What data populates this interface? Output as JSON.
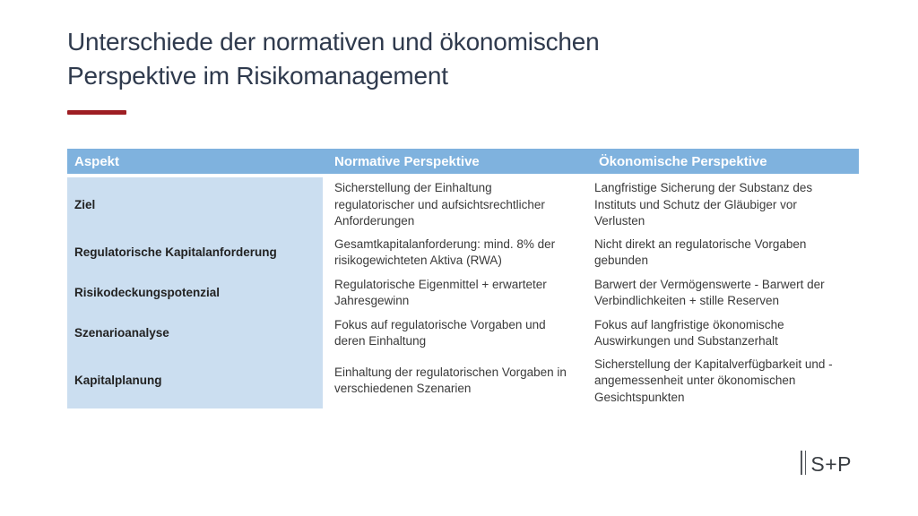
{
  "slide": {
    "title_lines": [
      "Unterschiede der normativen und ökonomischen",
      "Perspektive im Risikomanagement"
    ],
    "title_full": "Unterschiede der normativen und ökonomischen Perspektive im Risikomanagement"
  },
  "table": {
    "headers": [
      "Aspekt",
      "Normative Perspektive",
      "Ökonomische Perspektive"
    ],
    "rows": [
      {
        "aspekt": "Ziel",
        "normative": "Sicherstellung der Einhaltung regulatorischer und aufsichtsrechtlicher Anforderungen",
        "oekonomische": "Langfristige Sicherung der Substanz des Instituts und Schutz der Gläubiger vor Verlusten"
      },
      {
        "aspekt": "Regulatorische Kapitalanforderung",
        "normative": "Gesamtkapitalanforderung: mind. 8% der risikogewichteten Aktiva (RWA)",
        "oekonomische": "Nicht direkt an regulatorische Vorgaben gebunden"
      },
      {
        "aspekt": "Risikodeckungspotenzial",
        "normative": "Regulatorische Eigenmittel + erwarteter Jahresgewinn",
        "oekonomische": "Barwert der Vermögenswerte - Barwert der Verbindlichkeiten + stille Reserven"
      },
      {
        "aspekt": "Szenarioanalyse",
        "normative": "Fokus auf regulatorische Vorgaben und deren Einhaltung",
        "oekonomische": "Fokus auf langfristige ökonomische Auswirkungen und Substanzerhalt"
      },
      {
        "aspekt": "Kapitalplanung",
        "normative": "Einhaltung der regulatorischen Vorgaben in verschiedenen Szenarien",
        "oekonomische": "Sicherstellung der Kapitalverfügbarkeit und -angemessenheit unter ökonomischen Gesichtspunkten"
      }
    ]
  },
  "logo": {
    "bars_icon": "double-vertical-bars",
    "text": "S+P"
  },
  "colors": {
    "title": "#2f3a4d",
    "accent_red": "#9e1e23",
    "header_blue": "#7fb2de",
    "row_label_blue": "#cbdef0",
    "body_text": "#3a3a3a",
    "background": "#ffffff"
  }
}
